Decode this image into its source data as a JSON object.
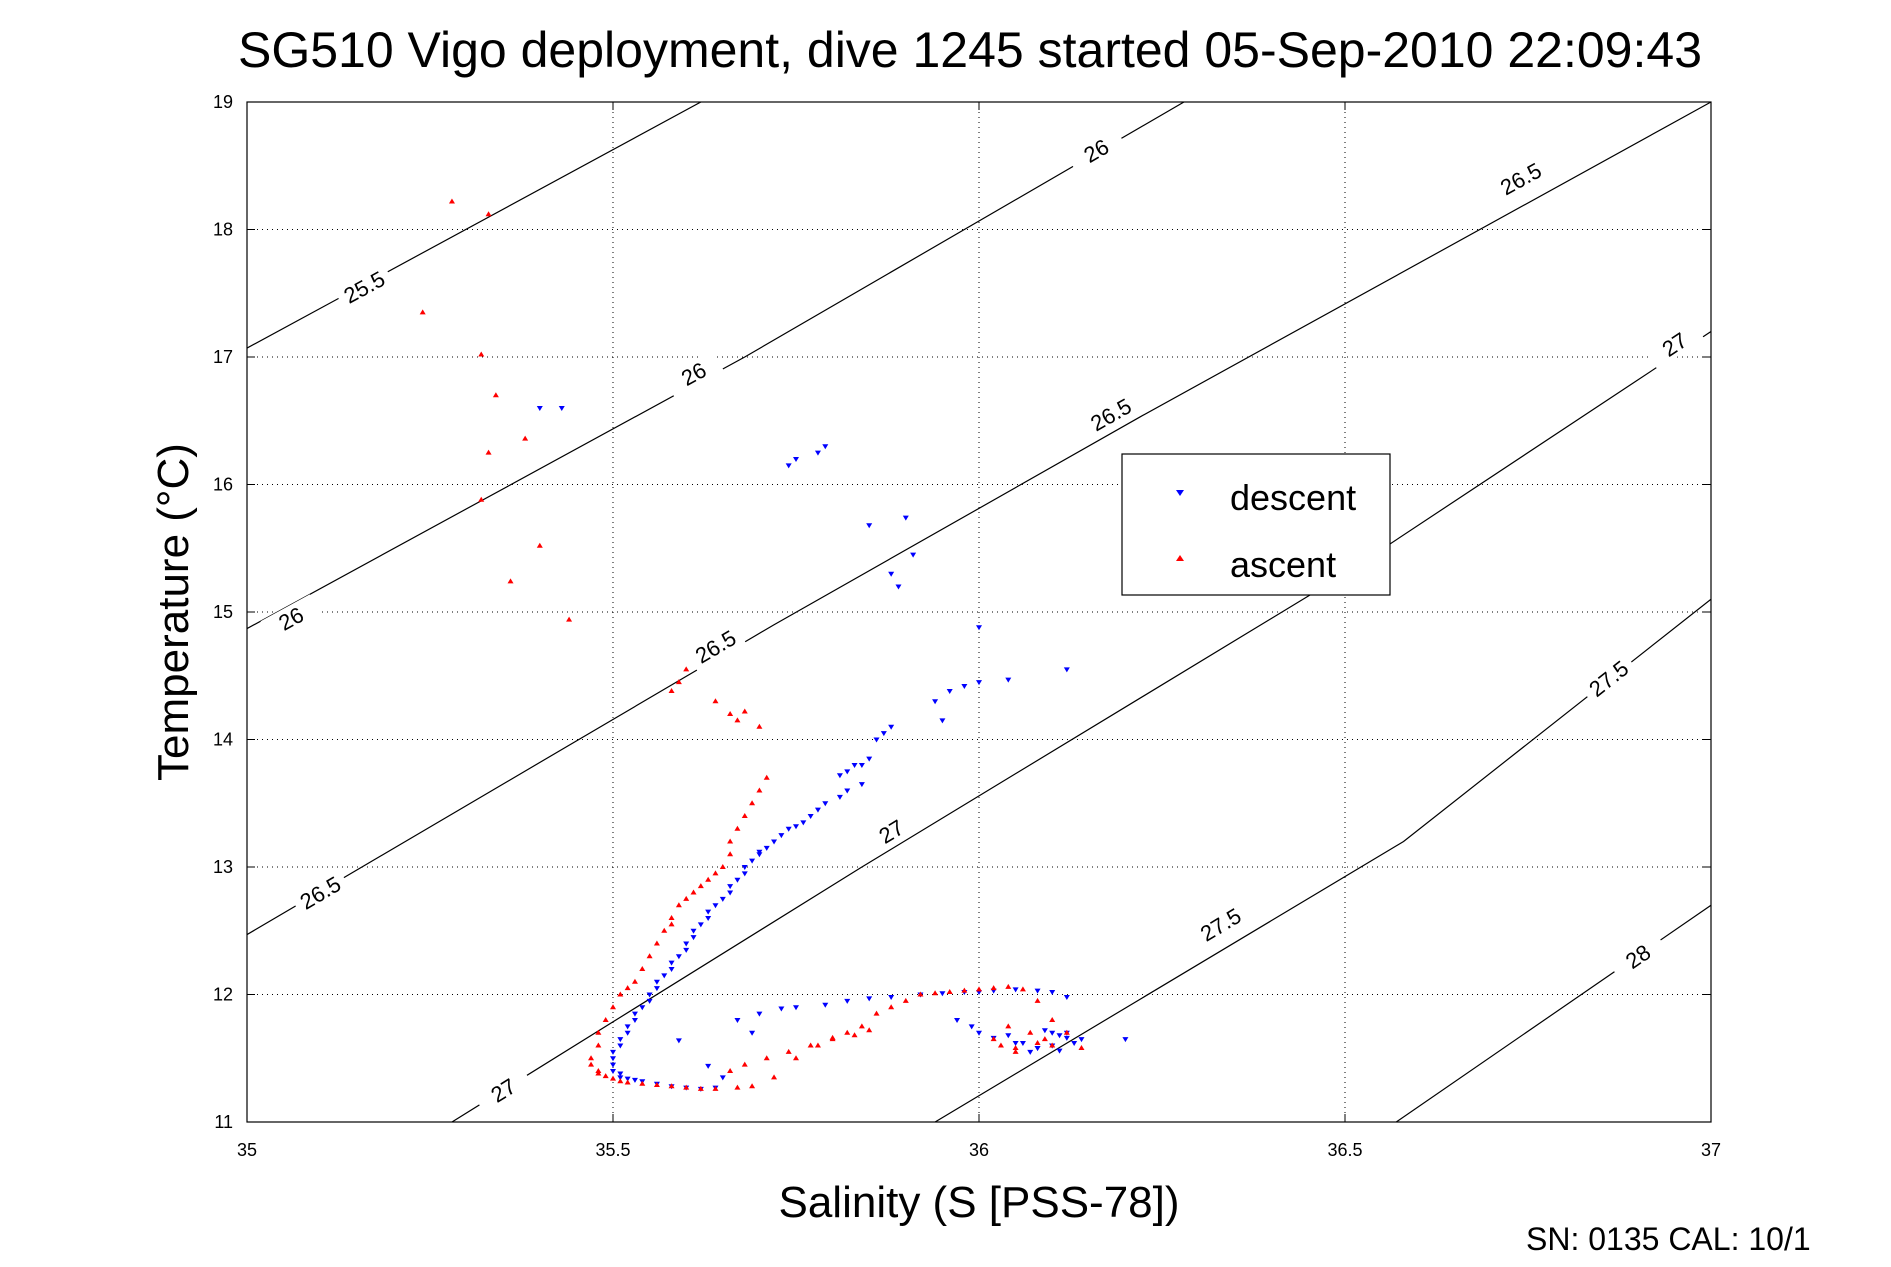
{
  "chart_data": {
    "type": "scatter",
    "title": "SG510 Vigo deployment, dive 1245 started 05-Sep-2010 22:09:43",
    "xlabel": "Salinity (S [PSS-78])",
    "ylabel": "Temperature (°C)",
    "xlim": [
      35,
      37
    ],
    "ylim": [
      11,
      19
    ],
    "x_ticks": [
      "35",
      "35.5",
      "36",
      "36.5",
      "37"
    ],
    "y_ticks": [
      "11",
      "12",
      "13",
      "14",
      "15",
      "16",
      "17",
      "18",
      "19"
    ],
    "grid": true,
    "legend_position": "upper-right-center",
    "footer": "SN: 0135  CAL: 10/1",
    "colors": {
      "descent": "#0000ff",
      "ascent": "#ff0000",
      "axes": "#000000"
    },
    "series": [
      {
        "name": "descent",
        "marker": "triangle-down",
        "color": "#0000ff",
        "x": [
          35.4,
          35.43,
          35.74,
          35.75,
          35.79,
          35.78,
          35.85,
          35.9,
          35.88,
          35.91,
          35.89,
          36.0,
          36.04,
          36.12,
          35.94,
          35.96,
          35.98,
          36.0,
          35.95,
          35.86,
          35.87,
          35.88,
          35.85,
          35.84,
          35.83,
          35.82,
          35.81,
          35.84,
          35.82,
          35.81,
          35.79,
          35.78,
          35.77,
          35.76,
          35.75,
          35.74,
          35.73,
          35.72,
          35.71,
          35.7,
          35.7,
          35.69,
          35.68,
          35.68,
          35.67,
          35.66,
          35.66,
          35.65,
          35.64,
          35.63,
          35.63,
          35.62,
          35.61,
          35.61,
          35.6,
          35.6,
          35.59,
          35.58,
          35.58,
          35.57,
          35.56,
          35.56,
          35.55,
          35.55,
          35.54,
          35.53,
          35.53,
          35.52,
          35.52,
          35.51,
          35.51,
          35.5,
          35.5,
          35.5,
          35.5,
          35.51,
          35.51,
          35.52,
          35.53,
          35.54,
          35.56,
          35.58,
          35.6,
          35.62,
          35.64,
          35.65,
          35.63,
          35.59,
          35.67,
          35.69,
          35.7,
          35.73,
          35.75,
          35.79,
          35.82,
          35.85,
          35.88,
          35.92,
          35.95,
          35.98,
          36.0,
          36.02,
          36.05,
          36.08,
          36.1,
          36.12,
          36.09,
          36.1,
          36.11,
          36.12,
          36.13,
          36.1,
          36.08,
          36.11,
          36.14,
          36.2,
          35.97,
          35.99,
          36.0,
          36.02,
          36.05,
          36.07,
          36.1,
          36.12,
          36.08,
          36.06,
          36.04
        ],
        "y": [
          16.6,
          16.6,
          16.15,
          16.2,
          16.3,
          16.25,
          15.68,
          15.74,
          15.3,
          15.45,
          15.2,
          14.88,
          14.47,
          14.55,
          14.3,
          14.38,
          14.42,
          14.45,
          14.15,
          14.0,
          14.05,
          14.1,
          13.85,
          13.8,
          13.8,
          13.75,
          13.72,
          13.65,
          13.6,
          13.55,
          13.5,
          13.45,
          13.4,
          13.35,
          13.32,
          13.3,
          13.25,
          13.2,
          13.15,
          13.12,
          13.1,
          13.05,
          13.0,
          12.95,
          12.9,
          12.85,
          12.8,
          12.75,
          12.7,
          12.65,
          12.6,
          12.55,
          12.5,
          12.45,
          12.4,
          12.35,
          12.3,
          12.25,
          12.2,
          12.15,
          12.1,
          12.05,
          12.0,
          11.95,
          11.9,
          11.85,
          11.8,
          11.75,
          11.7,
          11.65,
          11.6,
          11.55,
          11.5,
          11.45,
          11.4,
          11.38,
          11.35,
          11.34,
          11.33,
          11.32,
          11.3,
          11.28,
          11.27,
          11.26,
          11.27,
          11.35,
          11.44,
          11.64,
          11.8,
          11.7,
          11.85,
          11.89,
          11.9,
          11.92,
          11.95,
          11.97,
          11.98,
          12.0,
          12.01,
          12.02,
          12.02,
          12.03,
          12.04,
          12.03,
          12.02,
          11.98,
          11.72,
          11.7,
          11.68,
          11.66,
          11.62,
          11.6,
          11.58,
          11.56,
          11.65,
          11.65,
          11.8,
          11.75,
          11.7,
          11.66,
          11.62,
          11.55,
          11.6,
          11.7,
          11.58,
          11.62,
          11.68
        ]
      },
      {
        "name": "ascent",
        "marker": "triangle-up",
        "color": "#ff0000",
        "x": [
          35.28,
          35.33,
          35.24,
          35.32,
          35.34,
          35.33,
          35.32,
          35.38,
          35.36,
          35.4,
          35.44,
          35.6,
          35.59,
          35.58,
          35.64,
          35.66,
          35.67,
          35.68,
          35.7,
          35.71,
          35.7,
          35.69,
          35.68,
          35.67,
          35.66,
          35.66,
          35.65,
          35.64,
          35.63,
          35.62,
          35.61,
          35.6,
          35.59,
          35.58,
          35.58,
          35.57,
          35.56,
          35.55,
          35.54,
          35.53,
          35.52,
          35.51,
          35.5,
          35.49,
          35.48,
          35.48,
          35.47,
          35.47,
          35.48,
          35.48,
          35.49,
          35.5,
          35.51,
          35.52,
          35.54,
          35.56,
          35.58,
          35.6,
          35.62,
          35.64,
          35.67,
          35.69,
          35.72,
          35.75,
          35.78,
          35.8,
          35.82,
          35.84,
          35.86,
          35.88,
          35.9,
          35.92,
          35.94,
          35.96,
          35.98,
          36.0,
          36.02,
          36.04,
          36.06,
          36.08,
          36.1,
          36.12,
          36.14,
          36.05,
          36.1,
          36.09,
          36.07,
          36.04,
          36.02,
          36.03,
          36.05,
          36.08,
          35.85,
          35.83,
          35.8,
          35.77,
          35.74,
          35.71,
          35.68,
          35.66
        ],
        "y": [
          18.22,
          18.12,
          17.35,
          17.02,
          16.7,
          16.25,
          15.88,
          16.36,
          15.24,
          15.52,
          14.94,
          14.55,
          14.45,
          14.38,
          14.3,
          14.2,
          14.15,
          14.22,
          14.1,
          13.7,
          13.6,
          13.5,
          13.4,
          13.3,
          13.2,
          13.1,
          13.0,
          12.95,
          12.9,
          12.85,
          12.8,
          12.75,
          12.7,
          12.6,
          12.55,
          12.5,
          12.4,
          12.3,
          12.2,
          12.1,
          12.05,
          12.0,
          11.9,
          11.8,
          11.7,
          11.6,
          11.5,
          11.45,
          11.4,
          11.38,
          11.36,
          11.34,
          11.32,
          11.31,
          11.3,
          11.29,
          11.28,
          11.27,
          11.26,
          11.26,
          11.27,
          11.28,
          11.35,
          11.5,
          11.6,
          11.65,
          11.7,
          11.75,
          11.85,
          11.9,
          11.95,
          12.0,
          12.01,
          12.02,
          12.03,
          12.04,
          12.05,
          12.06,
          12.04,
          11.95,
          11.8,
          11.7,
          11.58,
          11.55,
          11.6,
          11.65,
          11.7,
          11.75,
          11.65,
          11.6,
          11.58,
          11.62,
          11.72,
          11.68,
          11.66,
          11.6,
          11.55,
          11.5,
          11.45,
          11.4
        ]
      }
    ],
    "isopycnals": [
      {
        "label": "25.5",
        "points": [
          [
            35.0,
            17.07
          ],
          [
            35.62,
            19.0
          ]
        ],
        "label_at": [
          35.16,
          17.55
        ]
      },
      {
        "label": "26",
        "points": [
          [
            35.0,
            14.87
          ],
          [
            35.68,
            17.0
          ],
          [
            36.28,
            19.0
          ]
        ],
        "label_at": [
          35.06,
          14.95
        ]
      },
      {
        "label": "26",
        "points": [
          [
            35.0,
            14.87
          ],
          [
            35.68,
            17.0
          ],
          [
            36.28,
            19.0
          ]
        ],
        "label_at": [
          35.61,
          16.87
        ]
      },
      {
        "label": "26",
        "points": [
          [
            35.0,
            14.87
          ],
          [
            35.68,
            17.0
          ],
          [
            36.28,
            19.0
          ]
        ],
        "label_at": [
          36.16,
          18.62
        ]
      },
      {
        "label": "26.5",
        "points": [
          [
            35.0,
            12.47
          ],
          [
            35.72,
            14.9
          ],
          [
            36.22,
            16.53
          ],
          [
            37.0,
            19.0
          ]
        ],
        "label_at": [
          35.1,
          12.8
        ]
      },
      {
        "label": "26.5",
        "points": [
          [
            35.0,
            12.47
          ],
          [
            35.72,
            14.9
          ],
          [
            36.22,
            16.53
          ],
          [
            37.0,
            19.0
          ]
        ],
        "label_at": [
          35.64,
          14.73
        ]
      },
      {
        "label": "26.5",
        "points": [
          [
            35.0,
            12.47
          ],
          [
            35.72,
            14.9
          ],
          [
            36.22,
            16.53
          ],
          [
            37.0,
            19.0
          ]
        ],
        "label_at": [
          36.18,
          16.55
        ]
      },
      {
        "label": "26.5",
        "points": [
          [
            35.0,
            12.47
          ],
          [
            35.72,
            14.9
          ],
          [
            36.22,
            16.53
          ],
          [
            37.0,
            19.0
          ]
        ],
        "label_at": [
          36.74,
          18.4
        ]
      },
      {
        "label": "27",
        "points": [
          [
            35.28,
            11.0
          ],
          [
            35.84,
            13.0
          ],
          [
            36.5,
            15.3
          ],
          [
            37.0,
            17.2
          ]
        ],
        "label_at": [
          35.35,
          11.25
        ]
      },
      {
        "label": "27",
        "points": [
          [
            35.28,
            11.0
          ],
          [
            35.84,
            13.0
          ],
          [
            36.5,
            15.3
          ],
          [
            37.0,
            17.2
          ]
        ],
        "label_at": [
          35.88,
          13.28
        ]
      },
      {
        "label": "27",
        "points": [
          [
            35.28,
            11.0
          ],
          [
            35.84,
            13.0
          ],
          [
            36.5,
            15.3
          ],
          [
            37.0,
            17.2
          ]
        ],
        "label_at": [
          36.95,
          17.1
        ]
      },
      {
        "label": "27.5",
        "points": [
          [
            35.94,
            11.0
          ],
          [
            36.58,
            13.2
          ],
          [
            37.0,
            15.1
          ]
        ],
        "label_at": [
          36.33,
          12.55
        ]
      },
      {
        "label": "27.5",
        "points": [
          [
            35.94,
            11.0
          ],
          [
            36.58,
            13.2
          ],
          [
            37.0,
            15.1
          ]
        ],
        "label_at": [
          36.86,
          14.48
        ]
      },
      {
        "label": "28",
        "points": [
          [
            36.57,
            11.0
          ],
          [
            37.0,
            12.7
          ]
        ],
        "label_at": [
          36.9,
          12.3
        ]
      }
    ]
  }
}
